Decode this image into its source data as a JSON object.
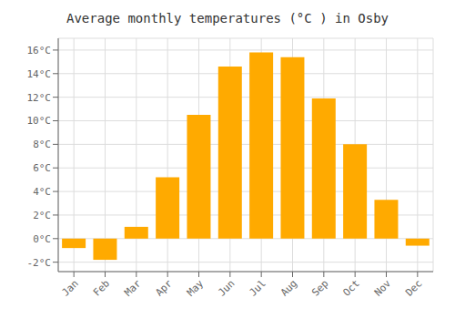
{
  "chart_data": {
    "type": "bar",
    "title": "Average monthly temperatures (°C ) in Osby",
    "categories": [
      "Jan",
      "Feb",
      "Mar",
      "Apr",
      "May",
      "Jun",
      "Jul",
      "Aug",
      "Sep",
      "Oct",
      "Nov",
      "Dec"
    ],
    "values": [
      -0.8,
      -1.8,
      1.0,
      5.2,
      10.5,
      14.6,
      15.8,
      15.4,
      11.9,
      8.0,
      3.3,
      -0.6
    ],
    "color": "#FFAA00",
    "ylim": [
      -2.8,
      17.0
    ],
    "yticks": [
      {
        "value": -2,
        "label": "-2°C"
      },
      {
        "value": 0,
        "label": "0°C"
      },
      {
        "value": 2,
        "label": "2°C"
      },
      {
        "value": 4,
        "label": "4°C"
      },
      {
        "value": 6,
        "label": "6°C"
      },
      {
        "value": 8,
        "label": "8°C"
      },
      {
        "value": 10,
        "label": "10°C"
      },
      {
        "value": 12,
        "label": "12°C"
      },
      {
        "value": 14,
        "label": "14°C"
      },
      {
        "value": 16,
        "label": "16°C"
      }
    ],
    "grid": true
  }
}
